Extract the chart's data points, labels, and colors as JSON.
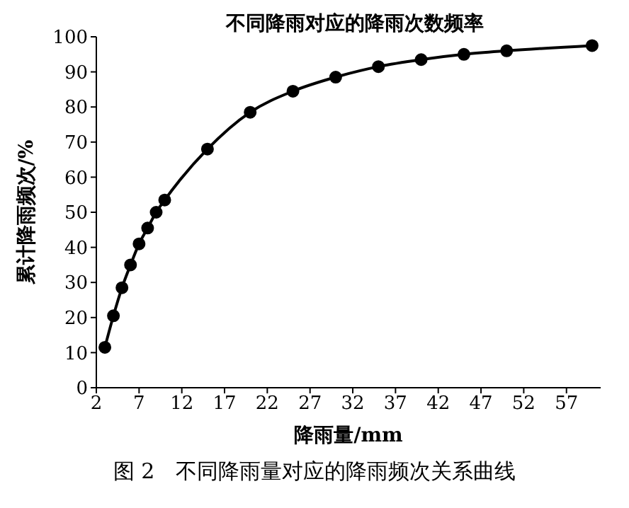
{
  "chart_data": {
    "type": "line",
    "title": "不同降雨对应的降雨次数频率",
    "xlabel": "降雨量/mm",
    "ylabel": "累计降雨频次/%",
    "x": [
      3,
      4,
      5,
      6,
      7,
      8,
      9,
      10,
      15,
      20,
      25,
      30,
      35,
      40,
      45,
      50,
      60
    ],
    "series": [
      {
        "color": "#000000",
        "values": [
          11.5,
          20.5,
          28.5,
          35,
          41,
          45.5,
          50,
          53.5,
          68,
          78.5,
          84.5,
          88.5,
          91.5,
          93.5,
          95,
          96,
          97.5
        ]
      }
    ],
    "xlim": [
      2,
      61
    ],
    "xticks": [
      2,
      7,
      12,
      17,
      22,
      27,
      32,
      37,
      42,
      47,
      52,
      57
    ],
    "ylim": [
      0,
      100
    ],
    "yticks": [
      0,
      10,
      20,
      30,
      40,
      50,
      60,
      70,
      80,
      90,
      100
    ],
    "grid": false,
    "legend": false,
    "marker": "circle",
    "line_style": "solid",
    "annotations": [
      "图 2　不同降雨量对应的降雨频次关系曲线"
    ]
  }
}
